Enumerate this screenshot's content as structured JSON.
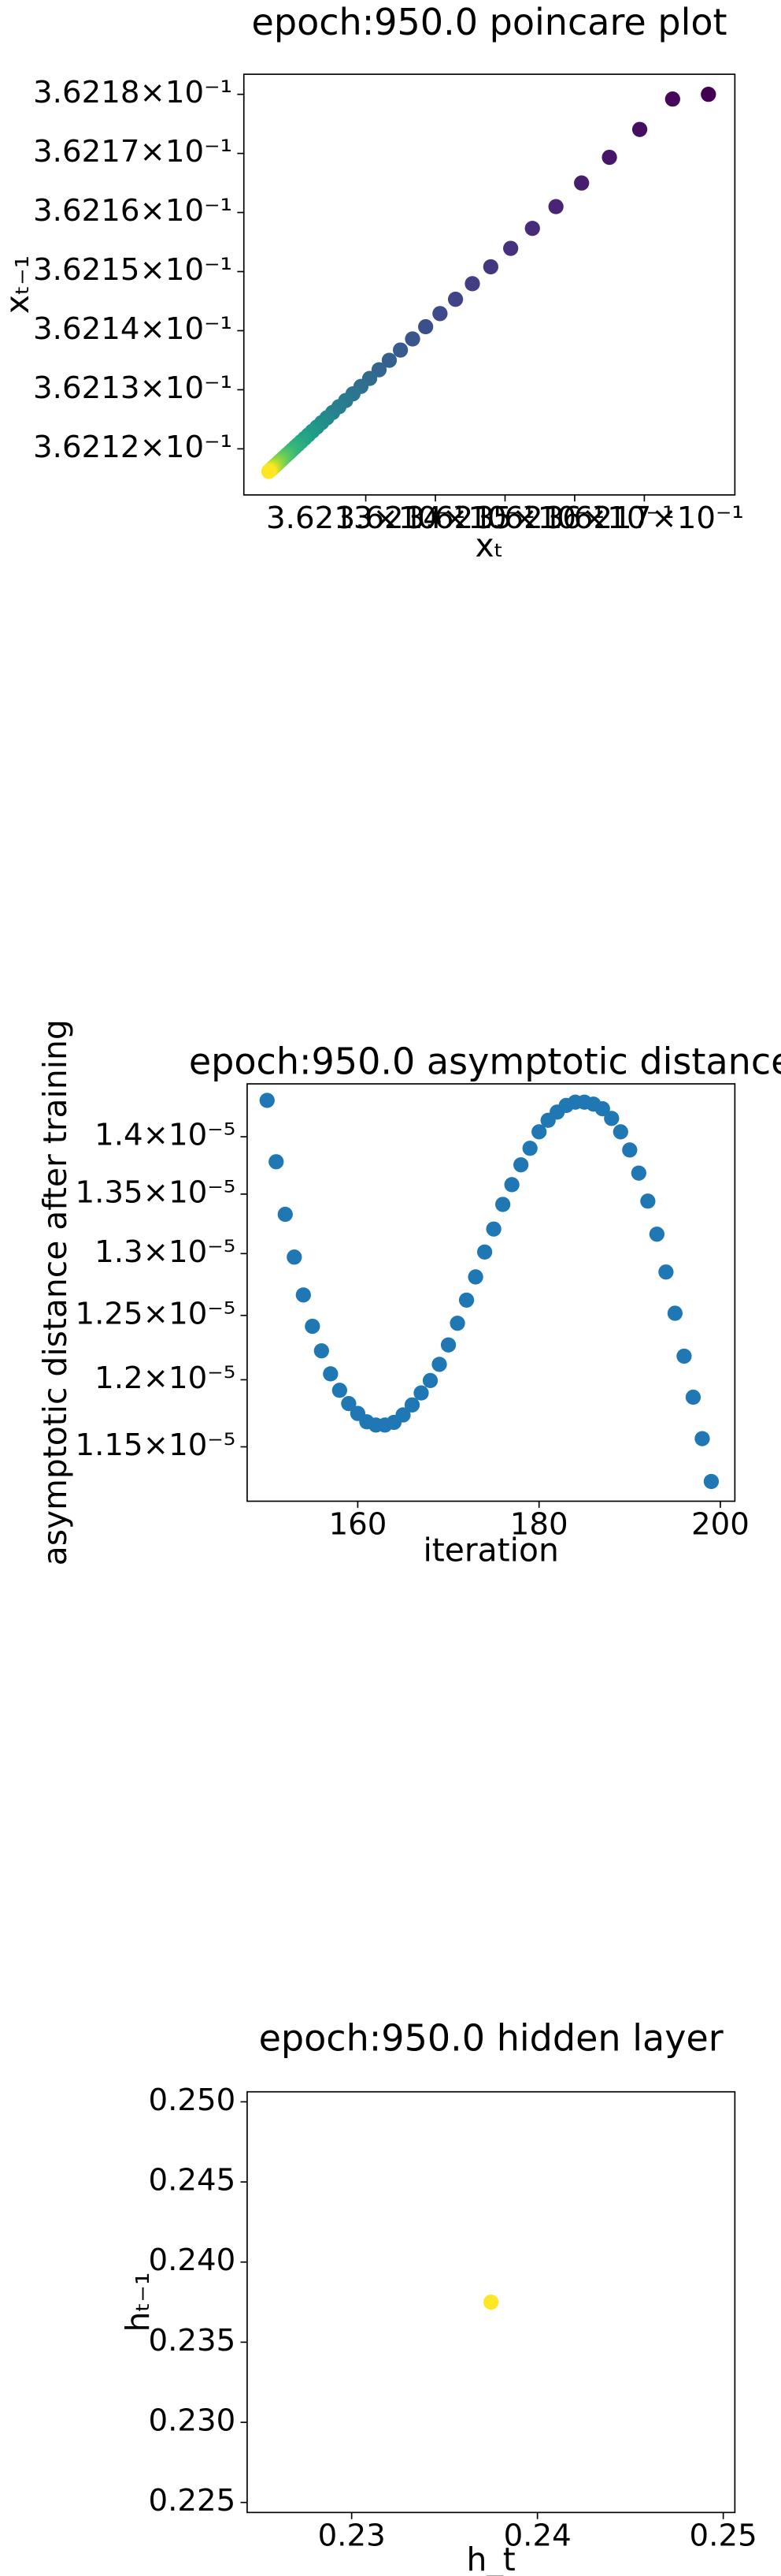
{
  "chart_data": [
    {
      "type": "scatter",
      "title": "epoch:950.0 poincare plot",
      "x_label": "xₜ",
      "y_label": "xₜ₋₁",
      "xscale": "log",
      "yscale": "log",
      "colormap": "viridis",
      "x": [
        0.3621792,
        0.36217406,
        0.36216934,
        0.36216499,
        0.36216099,
        0.36215731,
        0.36215393,
        0.36215081,
        0.36214795,
        0.36214531,
        0.36214289,
        0.36214066,
        0.3621386,
        0.36213672,
        0.36213498,
        0.36213338,
        0.36213191,
        0.36213056,
        0.36212931,
        0.36212817,
        0.36212712,
        0.36212615,
        0.36212525,
        0.36212443,
        0.36212368,
        0.36212299,
        0.36212235,
        0.36212176,
        0.36212122,
        0.36212072,
        0.36212026,
        0.36211984,
        0.36211945,
        0.3621191,
        0.36211877,
        0.36211847,
        0.36211819,
        0.36211794,
        0.3621177,
        0.36211748,
        0.36211729,
        0.3621171,
        0.36211693,
        0.36211678,
        0.36211664,
        0.36211651,
        0.36211639,
        0.36211628,
        0.36211617,
        0.36211608
      ],
      "y": [
        0.36218,
        0.3621792,
        0.36217406,
        0.36216934,
        0.36216499,
        0.36216099,
        0.36215731,
        0.36215393,
        0.36215081,
        0.36214795,
        0.36214531,
        0.36214289,
        0.36214066,
        0.3621386,
        0.36213672,
        0.36213498,
        0.36213338,
        0.36213191,
        0.36213056,
        0.36212931,
        0.36212817,
        0.36212712,
        0.36212615,
        0.36212525,
        0.36212443,
        0.36212368,
        0.36212299,
        0.36212235,
        0.36212176,
        0.36212122,
        0.36212072,
        0.36212026,
        0.36211984,
        0.36211945,
        0.3621191,
        0.36211877,
        0.36211847,
        0.36211819,
        0.36211794,
        0.3621177,
        0.36211748,
        0.36211729,
        0.3621171,
        0.36211693,
        0.36211678,
        0.36211664,
        0.36211651,
        0.36211639,
        0.36211628,
        0.36211617
      ],
      "xlim": [
        0.3621125,
        0.362183
      ],
      "ylim": [
        0.3621122,
        0.3621834
      ],
      "xticks": [
        {
          "value": 0.36213,
          "label": "3.6213×10⁻¹"
        },
        {
          "value": 0.36214,
          "label": "3.6214×10⁻¹"
        },
        {
          "value": 0.36215,
          "label": "3.6215×10⁻¹"
        },
        {
          "value": 0.36216,
          "label": "3.6216×10⁻¹"
        },
        {
          "value": 0.36217,
          "label": "3.6217×10⁻¹"
        }
      ],
      "yticks": [
        {
          "value": 0.36212,
          "label": "3.6212×10⁻¹"
        },
        {
          "value": 0.36213,
          "label": "3.6213×10⁻¹"
        },
        {
          "value": 0.36214,
          "label": "3.6214×10⁻¹"
        },
        {
          "value": 0.36215,
          "label": "3.6215×10⁻¹"
        },
        {
          "value": 0.36216,
          "label": "3.6216×10⁻¹"
        },
        {
          "value": 0.36217,
          "label": "3.6217×10⁻¹"
        },
        {
          "value": 0.36218,
          "label": "3.6218×10⁻¹"
        }
      ]
    },
    {
      "type": "scatter",
      "title": "epoch:950.0 asymptotic distance",
      "x_label": "iteration",
      "y_label": "asymptotic distance after training",
      "yscale": "log",
      "color": "#1f77b4",
      "x": [
        150,
        151,
        152,
        153,
        154,
        155,
        156,
        157,
        158,
        159,
        160,
        161,
        162,
        163,
        164,
        165,
        166,
        167,
        168,
        169,
        170,
        171,
        172,
        173,
        174,
        175,
        176,
        177,
        178,
        179,
        180,
        181,
        182,
        183,
        184,
        185,
        186,
        187,
        188,
        189,
        190,
        191,
        192,
        193,
        194,
        195,
        196,
        197,
        198,
        199
      ],
      "y": [
        1.4327e-05,
        1.378e-05,
        1.3328e-05,
        1.2971e-05,
        1.2663e-05,
        1.2414e-05,
        1.2222e-05,
        1.2045e-05,
        1.192e-05,
        1.182e-05,
        1.1746e-05,
        1.1684e-05,
        1.166e-05,
        1.166e-05,
        1.168e-05,
        1.1735e-05,
        1.181e-05,
        1.19e-05,
        1.1994e-05,
        1.2118e-05,
        1.2268e-05,
        1.2438e-05,
        1.2622e-05,
        1.2809e-05,
        1.3013e-05,
        1.3204e-05,
        1.3412e-05,
        1.3581e-05,
        1.3753e-05,
        1.3898e-05,
        1.4044e-05,
        1.4147e-05,
        1.4221e-05,
        1.4281e-05,
        1.4311e-05,
        1.4311e-05,
        1.4293e-05,
        1.4251e-05,
        1.4164e-05,
        1.4044e-05,
        1.3883e-05,
        1.3681e-05,
        1.344e-05,
        1.3161e-05,
        1.2849e-05,
        1.2517e-05,
        1.2181e-05,
        1.1868e-05,
        1.156e-05,
        1.125e-05
      ],
      "xlim": [
        147.8,
        201.6
      ],
      "ylim": [
        1.111e-05,
        1.4478e-05
      ],
      "xticks": [
        160,
        180,
        200
      ],
      "yticks": [
        {
          "value": 1.15e-05,
          "label": "1.15×10⁻⁵"
        },
        {
          "value": 1.2e-05,
          "label": "1.2×10⁻⁵"
        },
        {
          "value": 1.25e-05,
          "label": "1.25×10⁻⁵"
        },
        {
          "value": 1.3e-05,
          "label": "1.3×10⁻⁵"
        },
        {
          "value": 1.35e-05,
          "label": "1.35×10⁻⁵"
        },
        {
          "value": 1.4e-05,
          "label": "1.4×10⁻⁵"
        }
      ]
    },
    {
      "type": "scatter",
      "title": "epoch:950.0 hidden layer",
      "x_label": "h_t",
      "y_label": "hₜ₋₁",
      "color": "#fde725",
      "x": [
        0.2375
      ],
      "y": [
        0.2375
      ],
      "xlim": [
        0.224375,
        0.250625
      ],
      "ylim": [
        0.224375,
        0.250625
      ],
      "xticks": [
        0.23,
        0.24,
        0.25
      ],
      "yticks": [
        0.225,
        {
          "value": 0.23,
          "label": "0.230"
        },
        0.235,
        {
          "value": 0.24,
          "label": "0.240"
        },
        0.245,
        {
          "value": 0.25,
          "label": "0.250"
        }
      ]
    }
  ]
}
